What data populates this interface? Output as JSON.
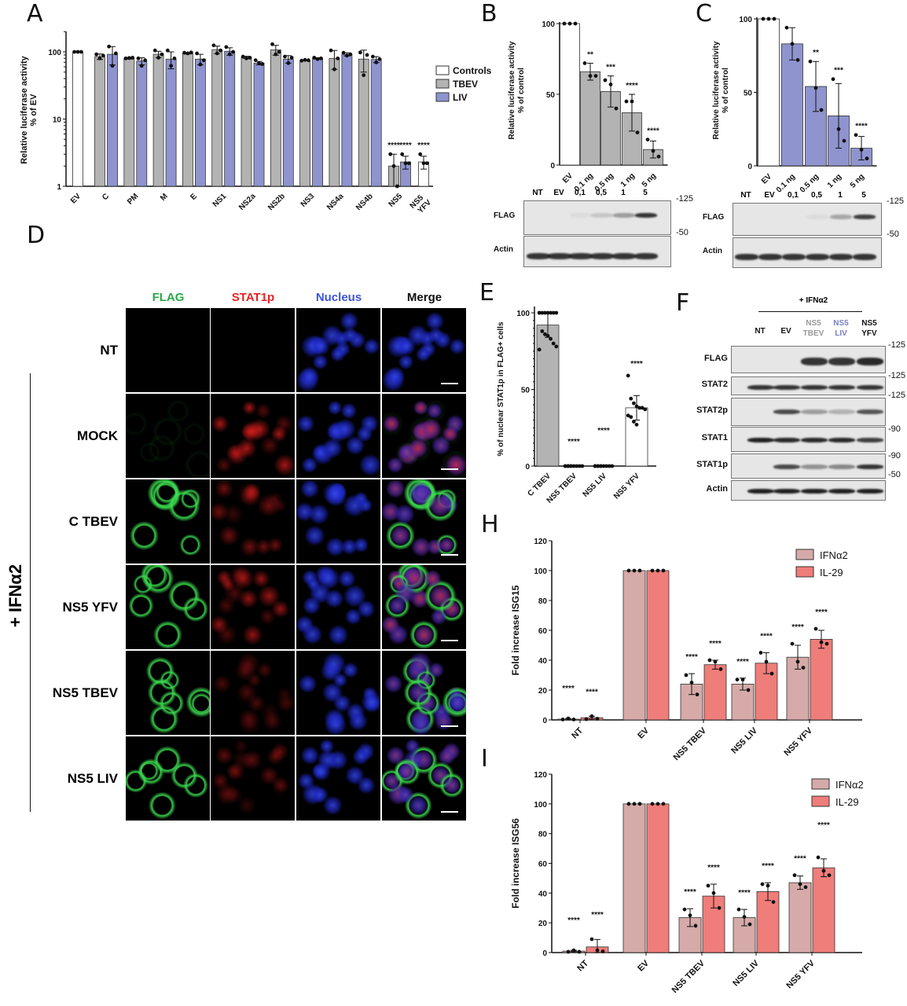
{
  "panel_letters": {
    "A": "A",
    "B": "B",
    "C": "C",
    "D": "D",
    "E": "E",
    "F": "F",
    "H": "H",
    "I": "I"
  },
  "colors": {
    "controls": "#ffffff",
    "TBEV": "#b3b3b3",
    "LIV": "#8f94cf",
    "IFNa2": "#d6aaa9",
    "IL29": "#ef7d79",
    "FLAG": "#2aa84a",
    "STAT1p": "#e52222",
    "Nucleus": "#3b55d9",
    "Merge": "#111111"
  },
  "chart_data": [
    {
      "id": "A",
      "type": "bar",
      "yscale": "log",
      "ylim": [
        1,
        200
      ],
      "ylabel": [
        "Relative luciferase activity",
        "% of EV"
      ],
      "yticks": [
        "1",
        "10",
        "100"
      ],
      "categories": [
        "EV",
        "C",
        "PM",
        "M",
        "E",
        "NS1",
        "NS2a",
        "NS2b",
        "NS3",
        "NS4a",
        "NS4b",
        "NS5",
        "NS5 YFV"
      ],
      "legend": {
        "position": "right",
        "entries": [
          "Controls",
          "TBEV",
          "LIV"
        ]
      },
      "series": [
        {
          "name": "Controls",
          "values": {
            "EV": {
              "mean": 100,
              "sd": 0,
              "points": [
                100,
                100,
                100
              ]
            },
            "NS5 YFV": {
              "mean": 2.3,
              "sd": 0.5,
              "points": [
                3,
                2.2,
                2.2
              ],
              "sig": "****"
            }
          }
        },
        {
          "name": "TBEV",
          "values": {
            "C": {
              "mean": 85,
              "sd": 8,
              "points": [
                92,
                80,
                88
              ]
            },
            "PM": {
              "mean": 80,
              "sd": 2,
              "points": [
                80,
                81,
                82
              ]
            },
            "M": {
              "mean": 92,
              "sd": 10,
              "points": [
                105,
                82,
                92
              ]
            },
            "E": {
              "mean": 95,
              "sd": 2,
              "points": [
                97,
                95,
                98
              ]
            },
            "NS1": {
              "mean": 108,
              "sd": 14,
              "points": [
                125,
                95,
                105
              ]
            },
            "NS2a": {
              "mean": 83,
              "sd": 3,
              "points": [
                85,
                80,
                82
              ]
            },
            "NS2b": {
              "mean": 107,
              "sd": 18,
              "points": [
                130,
                92,
                100
              ]
            },
            "NS3": {
              "mean": 75,
              "sd": 1,
              "points": [
                74,
                76,
                75
              ]
            },
            "NS4a": {
              "mean": 80,
              "sd": 25,
              "points": [
                105,
                55,
                80
              ]
            },
            "NS4b": {
              "mean": 78,
              "sd": 28,
              "points": [
                98,
                45,
                90
              ]
            },
            "NS5": {
              "mean": 2.0,
              "sd": 1.0,
              "points": [
                3,
                2,
                1
              ],
              "sig": "****"
            }
          }
        },
        {
          "name": "LIV",
          "values": {
            "C": {
              "mean": 92,
              "sd": 28,
              "points": [
                120,
                62,
                95
              ]
            },
            "PM": {
              "mean": 73,
              "sd": 9,
              "points": [
                80,
                62,
                75
              ]
            },
            "M": {
              "mean": 78,
              "sd": 22,
              "points": [
                105,
                62,
                80
              ]
            },
            "E": {
              "mean": 78,
              "sd": 14,
              "points": [
                95,
                65,
                75
              ]
            },
            "NS1": {
              "mean": 102,
              "sd": 13,
              "points": [
                118,
                92,
                100
              ]
            },
            "NS2a": {
              "mean": 68,
              "sd": 4,
              "points": [
                75,
                68,
                66
              ]
            },
            "NS2b": {
              "mean": 78,
              "sd": 10,
              "points": [
                85,
                68,
                82
              ]
            },
            "NS3": {
              "mean": 80,
              "sd": 2,
              "points": [
                82,
                78,
                80
              ]
            },
            "NS4a": {
              "mean": 92,
              "sd": 5,
              "points": [
                97,
                88,
                92
              ]
            },
            "NS4b": {
              "mean": 77,
              "sd": 8,
              "points": [
                85,
                70,
                78
              ]
            },
            "NS5": {
              "mean": 2.3,
              "sd": 0.5,
              "points": [
                3,
                2.2,
                2.2
              ],
              "sig": "****"
            }
          }
        }
      ]
    },
    {
      "id": "B",
      "type": "bar",
      "ylim": [
        0,
        100
      ],
      "yticks": [
        "0",
        "50",
        "100"
      ],
      "ylabel": [
        "Relative luciferase activity",
        "% of control"
      ],
      "categories": [
        "EV",
        "0.1 ng",
        "0.5 ng",
        "1 ng",
        "5 ng"
      ],
      "values": [
        100,
        66,
        52,
        37,
        11
      ],
      "sd": [
        0,
        6,
        11,
        13,
        6
      ],
      "points": [
        [
          100,
          100,
          100
        ],
        [
          72,
          63,
          63
        ],
        [
          60,
          57,
          40
        ],
        [
          45,
          45,
          23
        ],
        [
          18,
          10,
          6
        ]
      ],
      "sig": [
        "",
        "**",
        "***",
        "****",
        "****"
      ]
    },
    {
      "id": "C",
      "type": "bar",
      "ylim": [
        0,
        100
      ],
      "yticks": [
        "0",
        "50",
        "100"
      ],
      "ylabel": [
        "Relative luciferase activity",
        "% of control"
      ],
      "categories": [
        "EV",
        "0.1 ng",
        "0.5 ng",
        "1 ng",
        "5 ng"
      ],
      "values": [
        100,
        83,
        54,
        34,
        12
      ],
      "sd": [
        0,
        11,
        17,
        22,
        8
      ],
      "points": [
        [
          100,
          100,
          100
        ],
        [
          94,
          83,
          72
        ],
        [
          71,
          53,
          38
        ],
        [
          59,
          25,
          17
        ],
        [
          21,
          11,
          5
        ]
      ],
      "sig": [
        "",
        "",
        "**",
        "***",
        "****"
      ]
    },
    {
      "id": "E",
      "type": "bar",
      "ylim": [
        0,
        100
      ],
      "yticks": [
        "0",
        "50",
        "100"
      ],
      "ylabel": "% of nuclear STAT1p in FLAG+ cells",
      "categories": [
        "C TBEV",
        "NS5 TBEV",
        "NS5 LIV",
        "NS5 YFV"
      ],
      "values": [
        92,
        0,
        0,
        38
      ],
      "sd": [
        8,
        0,
        0,
        8
      ],
      "points": [
        [
          100,
          100,
          100,
          100,
          100,
          100,
          100,
          100,
          88,
          86,
          85,
          83,
          80,
          78,
          76
        ],
        [
          0,
          0,
          0,
          0,
          0,
          0,
          0,
          0,
          0,
          0
        ],
        [
          0,
          0,
          0,
          0,
          0,
          0,
          0,
          0,
          0,
          0
        ],
        [
          59,
          44,
          41,
          39,
          38,
          38,
          37,
          33,
          32,
          29,
          27
        ]
      ],
      "sig": [
        "",
        "****",
        "****",
        "****"
      ]
    },
    {
      "id": "H",
      "type": "bar",
      "ylim": [
        0,
        120
      ],
      "yticks": [
        "0",
        "20",
        "40",
        "60",
        "80",
        "100",
        "120"
      ],
      "ylabel": "Fold increase ISG15",
      "categories": [
        "NT",
        "EV",
        "NS5 TBEV",
        "NS5 LIV",
        "NS5 YFV"
      ],
      "legend": {
        "position": "top-right"
      },
      "series": [
        {
          "name": "IFNα2",
          "values": [
            0.5,
            100,
            24,
            24,
            42
          ],
          "sd": [
            0.5,
            0,
            7,
            4,
            8
          ],
          "points": [
            [
              0.3,
              1,
              0.3
            ],
            [
              100,
              100,
              100
            ],
            [
              30,
              25,
              17
            ],
            [
              27,
              27,
              20
            ],
            [
              51,
              39,
              35
            ]
          ],
          "sig": [
            "****",
            "",
            "****",
            "****",
            "****"
          ]
        },
        {
          "name": "IL-29",
          "values": [
            1.5,
            100,
            37,
            38,
            54
          ],
          "sd": [
            1,
            0,
            3,
            7,
            6
          ],
          "points": [
            [
              0.5,
              2.5,
              0.8
            ],
            [
              100,
              100,
              100
            ],
            [
              40,
              39,
              34
            ],
            [
              45,
              39,
              31
            ],
            [
              61,
              52,
              51
            ]
          ],
          "sig": [
            "****",
            "",
            "****",
            "****",
            "****"
          ]
        }
      ]
    },
    {
      "id": "I",
      "type": "bar",
      "ylim": [
        0,
        120
      ],
      "yticks": [
        "0",
        "20",
        "40",
        "60",
        "80",
        "100",
        "120"
      ],
      "ylabel": "Fold increase ISG56",
      "categories": [
        "NT",
        "EV",
        "NS5 TBEV",
        "NS5 LIV",
        "NS5 YFV"
      ],
      "legend": {
        "position": "top-right"
      },
      "series": [
        {
          "name": "IFNα2",
          "values": [
            1,
            100,
            23.5,
            23.5,
            47
          ],
          "sd": [
            0.5,
            0,
            6,
            5.5,
            4.5
          ],
          "points": [
            [
              0.5,
              1.5,
              0.5
            ],
            [
              100,
              100,
              100
            ],
            [
              29,
              25,
              18
            ],
            [
              29,
              24,
              19
            ],
            [
              52,
              46,
              44
            ]
          ],
          "sig": [
            "****",
            "",
            "****",
            "****",
            "****"
          ]
        },
        {
          "name": "IL-29",
          "values": [
            3.8,
            100,
            38,
            41,
            57
          ],
          "sd": [
            5,
            0,
            8,
            6,
            6
          ],
          "points": [
            [
              9,
              1.5,
              0.8
            ],
            [
              100,
              100,
              100
            ],
            [
              45,
              40,
              30
            ],
            [
              46,
              45,
              34
            ],
            [
              64,
              55,
              52
            ]
          ],
          "sig": [
            "****",
            "",
            "****",
            "****",
            "****"
          ]
        }
      ]
    }
  ],
  "blots": {
    "B": {
      "lanes": [
        "NT",
        "EV",
        "0,1",
        "0,5",
        "1",
        "5"
      ],
      "rows": [
        "FLAG",
        "Actin"
      ],
      "markers": [
        "-125",
        "-50"
      ]
    },
    "C": {
      "lanes": [
        "NT",
        "EV",
        "0,1",
        "0,5",
        "1",
        "5"
      ],
      "rows": [
        "FLAG",
        "Actin"
      ],
      "markers": [
        "-125",
        "-50"
      ]
    },
    "F": {
      "treatment": "+ IFNα2",
      "lanes": [
        [
          "NT",
          ""
        ],
        [
          "EV",
          ""
        ],
        [
          "NS5",
          "TBEV"
        ],
        [
          "NS5",
          "LIV"
        ],
        [
          "NS5",
          "YFV"
        ]
      ],
      "rows": [
        "FLAG",
        "STAT2",
        "STAT2p",
        "STAT1",
        "STAT1p",
        "Actin"
      ],
      "markers": [
        "-125",
        "-125",
        "-125",
        "-90",
        "-90",
        "-50"
      ]
    }
  },
  "microscopy": {
    "channels": [
      "FLAG",
      "STAT1p",
      "Nucleus",
      "Merge"
    ],
    "rows": [
      "NT",
      "MOCK",
      "C TBEV",
      "NS5 YFV",
      "NS5 TBEV",
      "NS5 LIV"
    ],
    "treatment": "+ IFNα2"
  }
}
